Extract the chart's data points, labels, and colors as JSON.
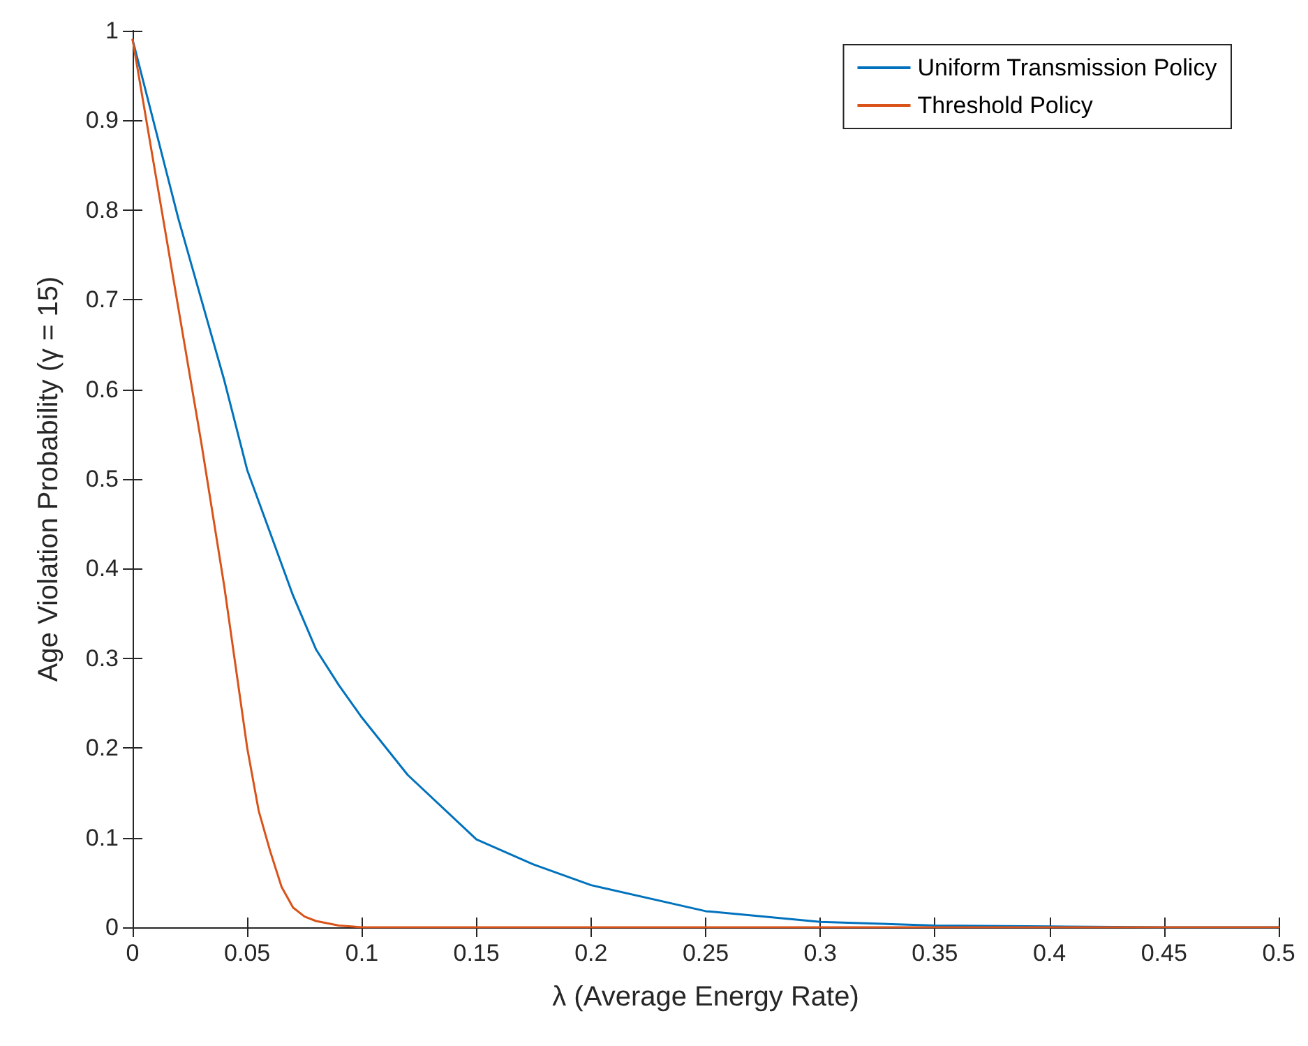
{
  "chart_data": {
    "type": "line",
    "xlabel": "λ (Average Energy Rate)",
    "ylabel": "Age Violation Probability (γ = 15)",
    "xlim": [
      0,
      0.5
    ],
    "xticks": [
      0,
      0.05,
      0.1,
      0.15,
      0.2,
      0.25,
      0.3,
      0.35,
      0.4,
      0.45,
      0.5
    ],
    "ylim": [
      0,
      1
    ],
    "yticks": [
      0,
      0.1,
      0.2,
      0.3,
      0.4,
      0.5,
      0.6,
      0.7,
      0.8,
      0.9,
      1
    ],
    "grid": false,
    "legend": "top right",
    "marker": "none",
    "line_style": "solid",
    "series": [
      {
        "name": "Uniform Transmission Policy",
        "color": "#0072bd",
        "x": [
          0,
          0.01,
          0.02,
          0.03,
          0.04,
          0.05,
          0.06,
          0.07,
          0.08,
          0.09,
          0.1,
          0.12,
          0.15,
          0.175,
          0.2,
          0.25,
          0.3,
          0.35,
          0.4,
          0.45,
          0.5
        ],
        "values": [
          0.99,
          0.89,
          0.79,
          0.7,
          0.61,
          0.51,
          0.44,
          0.37,
          0.31,
          0.27,
          0.234,
          0.17,
          0.098,
          0.07,
          0.047,
          0.018,
          0.006,
          0.002,
          0.001,
          0,
          0
        ]
      },
      {
        "name": "Threshold Policy",
        "color": "#d95319",
        "x": [
          0,
          0.01,
          0.02,
          0.03,
          0.04,
          0.05,
          0.055,
          0.06,
          0.065,
          0.07,
          0.075,
          0.08,
          0.09,
          0.1,
          0.2,
          0.3,
          0.4,
          0.5
        ],
        "values": [
          0.99,
          0.84,
          0.69,
          0.54,
          0.38,
          0.2,
          0.13,
          0.085,
          0.045,
          0.022,
          0.012,
          0.007,
          0.002,
          0,
          0,
          0,
          0,
          0
        ]
      }
    ]
  }
}
